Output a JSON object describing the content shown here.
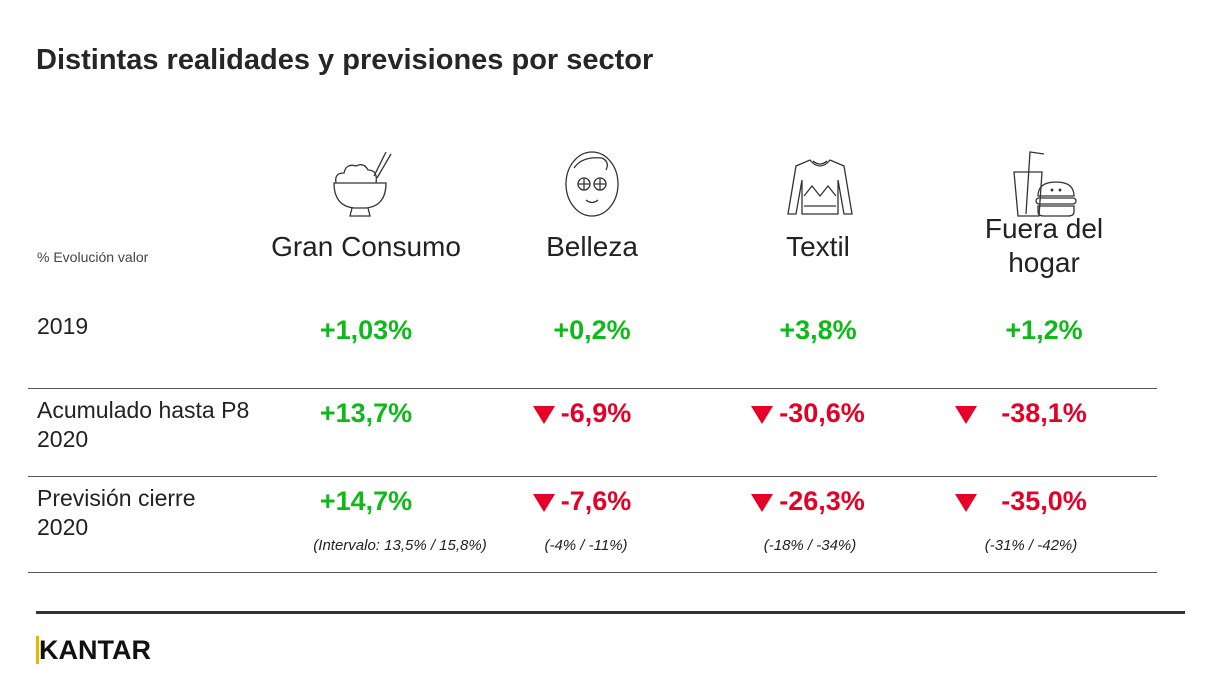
{
  "title": "Distintas realidades y previsiones por sector",
  "axis_label": "% Evolución valor",
  "sectors": [
    {
      "name": "Gran Consumo",
      "icon": "rice-bowl-icon"
    },
    {
      "name": "Belleza",
      "icon": "face-mask-icon"
    },
    {
      "name": "Textil",
      "icon": "sweater-icon"
    },
    {
      "name": "Fuera del hogar",
      "icon": "fast-food-icon"
    }
  ],
  "rows": [
    {
      "label": "2019",
      "values": [
        {
          "v": "+1,03%",
          "trend": "up"
        },
        {
          "v": "+0,2%",
          "trend": "up"
        },
        {
          "v": "+3,8%",
          "trend": "up"
        },
        {
          "v": "+1,2%",
          "trend": "up"
        }
      ]
    },
    {
      "label": "Acumulado hasta P8 2020",
      "values": [
        {
          "v": "+13,7%",
          "trend": "up"
        },
        {
          "v": "-6,9%",
          "trend": "down"
        },
        {
          "v": "-30,6%",
          "trend": "down"
        },
        {
          "v": "-38,1%",
          "trend": "down"
        }
      ]
    },
    {
      "label": "Previsión cierre 2020",
      "values": [
        {
          "v": "+14,7%",
          "trend": "up"
        },
        {
          "v": "-7,6%",
          "trend": "down"
        },
        {
          "v": "-26,3%",
          "trend": "down"
        },
        {
          "v": "-35,0%",
          "trend": "down"
        }
      ],
      "intervals": [
        "(Intervalo: 13,5% / 15,8%)",
        "(-4% / -11%)",
        "(-18% / -34%)",
        "(-31% / -42%)"
      ]
    }
  ],
  "colors": {
    "positive": "#10b91a",
    "negative": "#e60028",
    "logo_accent": "#e5b800"
  },
  "logo": "KANTAR"
}
